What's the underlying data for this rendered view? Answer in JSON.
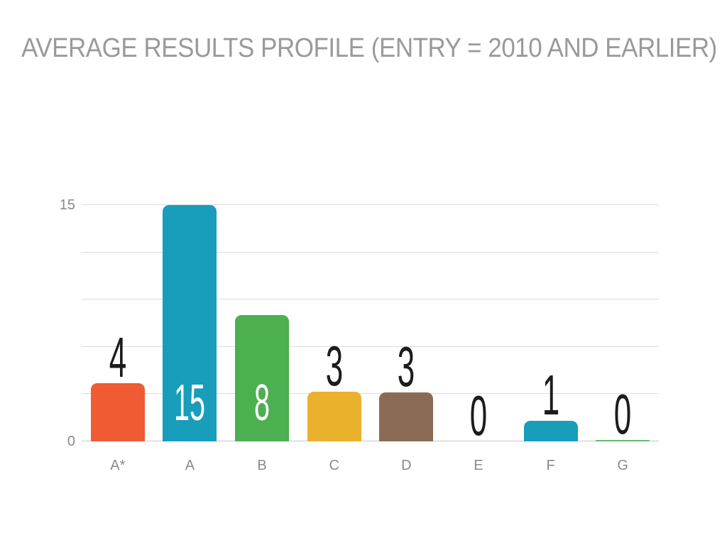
{
  "chart_data": {
    "type": "bar",
    "title": "AVERAGE RESULTS PROFILE (ENTRY = 2010 AND EARLIER)",
    "categories": [
      "A*",
      "A",
      "B",
      "C",
      "D",
      "E",
      "F",
      "G"
    ],
    "values": [
      4,
      15,
      8,
      3,
      3,
      0,
      1,
      0
    ],
    "bar_heights_estimated": [
      3.7,
      15,
      8,
      3.15,
      3.1,
      0,
      1.3,
      0.1
    ],
    "bar_colors": [
      "#F05B33",
      "#189DBB",
      "#4CAF50",
      "#EAB12C",
      "#8C6B55",
      "",
      "#189DBB",
      "#5FBE70"
    ],
    "value_label_placement": [
      "above",
      "inside",
      "inside",
      "above",
      "above",
      "above",
      "above",
      "above"
    ],
    "xlabel": "",
    "ylabel": "",
    "ylim": [
      0,
      15
    ],
    "yticks_labeled": [
      15,
      0
    ],
    "gridline_interval": 3,
    "grid": true,
    "legend": "none"
  },
  "palette": {
    "title_color": "#9a9a9a",
    "axis_text_color": "#8a8a8a",
    "gridline_color": "#dcdcdc",
    "baseline_color": "#c6c6c6",
    "value_label_above_color": "#1c1c1c",
    "value_label_inside_color": "#ffffff",
    "background_color": "#ffffff"
  }
}
